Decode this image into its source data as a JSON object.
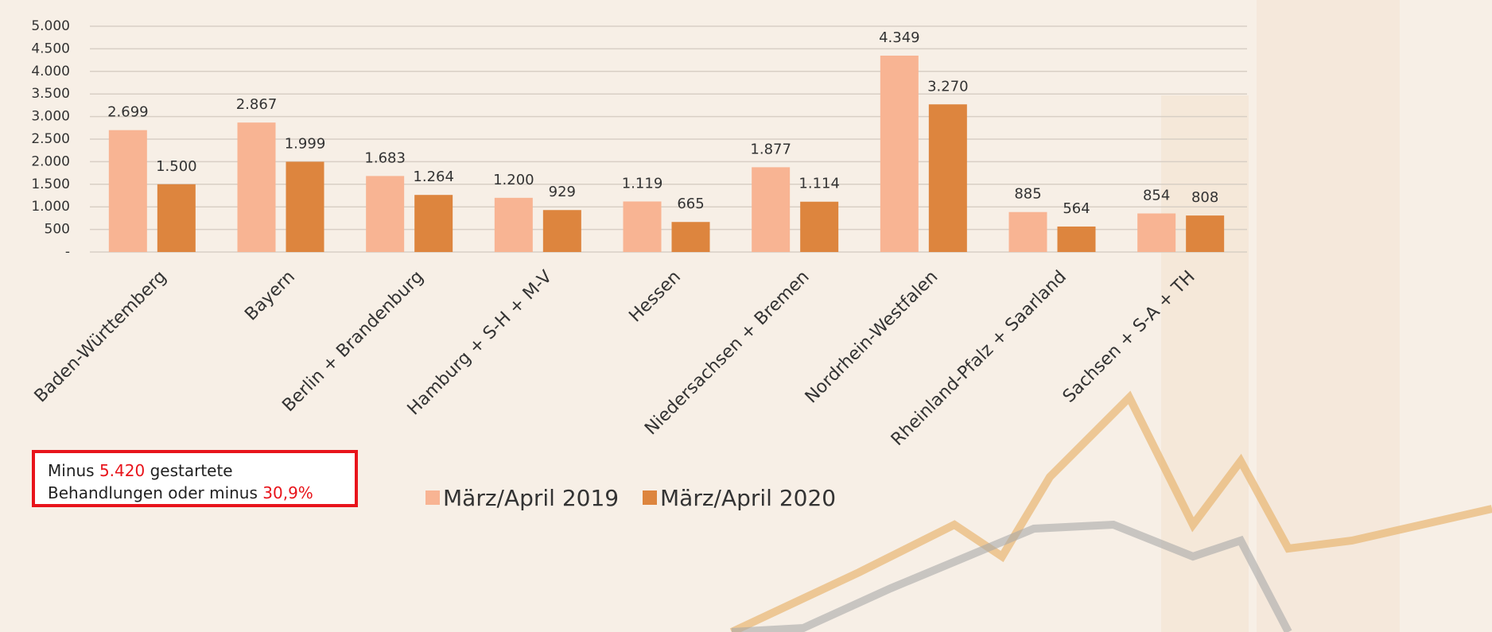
{
  "chart_data": {
    "type": "bar",
    "categories": [
      "Baden-Württemberg",
      "Bayern",
      "Berlin + Brandenburg",
      "Hamburg + S-H + M-V",
      "Hessen",
      "Niedersachsen + Bremen",
      "Nordrhein-Westfalen",
      "Rheinland-Pfalz + Saarland",
      "Sachsen + S-A + TH"
    ],
    "series": [
      {
        "name": "März/April 2019",
        "color": "#f8b493",
        "values": [
          2699,
          2867,
          1683,
          1200,
          1119,
          1877,
          4349,
          885,
          854
        ],
        "value_labels": [
          "2.699",
          "2.867",
          "1.683",
          "1.200",
          "1.119",
          "1.877",
          "4.349",
          "885",
          "854"
        ]
      },
      {
        "name": "März/April 2020",
        "color": "#dd853e",
        "values": [
          1500,
          1999,
          1264,
          929,
          665,
          1114,
          3270,
          564,
          808
        ],
        "value_labels": [
          "1.500",
          "1.999",
          "1.264",
          "929",
          "665",
          "1.114",
          "3.270",
          "564",
          "808"
        ]
      }
    ],
    "ylim": [
      0,
      5000
    ],
    "yticks": [
      {
        "value": 0,
        "label": "-"
      },
      500,
      {
        "value": 1000,
        "label": "1.000"
      },
      {
        "value": 1500,
        "label": "1.500"
      },
      {
        "value": 2000,
        "label": "2.000"
      },
      {
        "value": 2500,
        "label": "2.500"
      },
      {
        "value": 3000,
        "label": "3.000"
      },
      {
        "value": 3500,
        "label": "3.500"
      },
      {
        "value": 4000,
        "label": "4.000"
      },
      {
        "value": 4500,
        "label": "4.500"
      },
      {
        "value": 5000,
        "label": "5.000"
      }
    ],
    "grid": true,
    "legend": "bottom",
    "annotation": {
      "line_1_start": "Minus",
      "highlight_1": "5.420",
      "line_1_end": "gestartete",
      "line_2_start": "Behandlungen oder minus",
      "highlight_2": "30,9%"
    }
  }
}
